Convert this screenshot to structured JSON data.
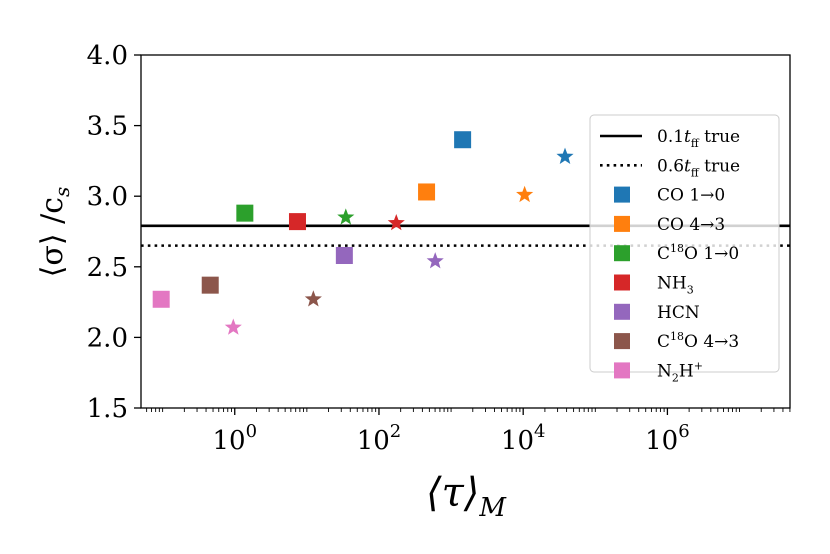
{
  "chart_data": {
    "type": "scatter",
    "xscale": "log",
    "xlim_log10": [
      -1.3,
      7.7
    ],
    "ylim": [
      1.5,
      4.0
    ],
    "x_ticks_log10": [
      0,
      2,
      4,
      6
    ],
    "x_tick_labels": [
      {
        "base": "10",
        "exp": "0"
      },
      {
        "base": "10",
        "exp": "2"
      },
      {
        "base": "10",
        "exp": "4"
      },
      {
        "base": "10",
        "exp": "6"
      }
    ],
    "y_ticks": [
      1.5,
      2.0,
      2.5,
      3.0,
      3.5,
      4.0
    ],
    "y_tick_labels": [
      "1.5",
      "2.0",
      "2.5",
      "3.0",
      "3.5",
      "4.0"
    ],
    "xlabel": {
      "main": "⟨τ⟩",
      "sub": "M"
    },
    "ylabel": {
      "main": "⟨σ⟩ /c",
      "sub": "s"
    },
    "reference_lines": [
      {
        "name": "0.1t_ff true",
        "y": 2.79,
        "style": "solid",
        "color": "#000000"
      },
      {
        "name": "0.6t_ff true",
        "y": 2.65,
        "style": "dotted",
        "color": "#000000"
      }
    ],
    "series": [
      {
        "name": "CO 1→0",
        "color": "#1f77b4",
        "square": {
          "tau_log10": 3.16,
          "sigma": 3.4
        },
        "star": {
          "tau_log10": 4.58,
          "sigma": 3.28
        }
      },
      {
        "name": "CO 4→3",
        "color": "#ff7f0e",
        "square": {
          "tau_log10": 2.66,
          "sigma": 3.03
        },
        "star": {
          "tau_log10": 4.02,
          "sigma": 3.01
        }
      },
      {
        "name": "C18O 1→0",
        "color": "#2ca02c",
        "square": {
          "tau_log10": 0.14,
          "sigma": 2.88
        },
        "star": {
          "tau_log10": 1.54,
          "sigma": 2.85
        }
      },
      {
        "name": "NH3",
        "color": "#d62728",
        "square": {
          "tau_log10": 0.87,
          "sigma": 2.82
        },
        "star": {
          "tau_log10": 2.24,
          "sigma": 2.81
        }
      },
      {
        "name": "HCN",
        "color": "#9467bd",
        "square": {
          "tau_log10": 1.52,
          "sigma": 2.58
        },
        "star": {
          "tau_log10": 2.78,
          "sigma": 2.54
        }
      },
      {
        "name": "C18O 4→3",
        "color": "#8c564b",
        "square": {
          "tau_log10": -0.34,
          "sigma": 2.37
        },
        "star": {
          "tau_log10": 1.09,
          "sigma": 2.27
        }
      },
      {
        "name": "N2H+",
        "color": "#e377c2",
        "square": {
          "tau_log10": -1.02,
          "sigma": 2.27
        },
        "star": {
          "tau_log10": -0.02,
          "sigma": 2.07
        }
      }
    ],
    "legend": {
      "location": "right",
      "entries": [
        {
          "kind": "solid-line",
          "color": "#000000",
          "pre": "0.1",
          "var": "t",
          "sub": "ff",
          "post": " true"
        },
        {
          "kind": "dotted-line",
          "color": "#000000",
          "pre": "0.6",
          "var": "t",
          "sub": "ff",
          "post": " true"
        },
        {
          "kind": "square",
          "color": "#1f77b4",
          "pre": "CO 1→0"
        },
        {
          "kind": "square",
          "color": "#ff7f0e",
          "pre": "CO 4→3"
        },
        {
          "kind": "square",
          "color": "#2ca02c",
          "pre": "C",
          "sup": "18",
          "post": "O 1→0"
        },
        {
          "kind": "square",
          "color": "#d62728",
          "pre": "NH",
          "sub": "3"
        },
        {
          "kind": "square",
          "color": "#9467bd",
          "pre": "HCN"
        },
        {
          "kind": "square",
          "color": "#8c564b",
          "pre": "C",
          "sup": "18",
          "post": "O 4→3"
        },
        {
          "kind": "square",
          "color": "#e377c2",
          "pre": "N",
          "sub": "2",
          "post": "H",
          "sup2": "+"
        }
      ]
    }
  }
}
